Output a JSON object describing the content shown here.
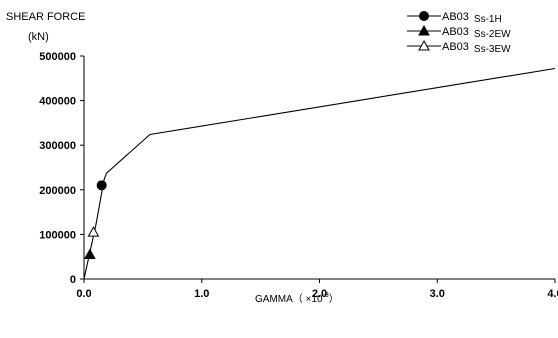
{
  "chart_data": {
    "type": "line",
    "ylabel": "SHEAR FORCE",
    "yunit": "(kN)",
    "xlabel_main": "GAMMA（ ×10",
    "xlabel_exp": "-3",
    "xlabel_close": "）",
    "xlim": [
      0,
      4.0
    ],
    "ylim": [
      0,
      500000
    ],
    "xticks": [
      {
        "value": 0.0,
        "label": "0.0"
      },
      {
        "value": 1.0,
        "label": "1.0"
      },
      {
        "value": 2.0,
        "label": "2.0"
      },
      {
        "value": 3.0,
        "label": "3.0"
      },
      {
        "value": 4.0,
        "label": "4.0"
      }
    ],
    "yticks": [
      {
        "value": 0,
        "label": "0"
      },
      {
        "value": 100000,
        "label": "100000"
      },
      {
        "value": 200000,
        "label": "200000"
      },
      {
        "value": 300000,
        "label": "300000"
      },
      {
        "value": 400000,
        "label": "400000"
      },
      {
        "value": 500000,
        "label": "500000"
      }
    ],
    "skeleton_curve": [
      {
        "x": 0.0,
        "y": 0
      },
      {
        "x": 0.1,
        "y": 120000
      },
      {
        "x": 0.17,
        "y": 222000
      },
      {
        "x": 0.19,
        "y": 237000
      },
      {
        "x": 0.56,
        "y": 324000
      },
      {
        "x": 4.0,
        "y": 472000
      }
    ],
    "series": [
      {
        "name_main": "AB03",
        "name_sub": "Ss-1H",
        "marker": "circle",
        "points": [
          {
            "x": 0.15,
            "y": 210000
          }
        ]
      },
      {
        "name_main": "AB03",
        "name_sub": "Ss-2EW",
        "marker": "triangle",
        "points": [
          {
            "x": 0.05,
            "y": 55000
          }
        ]
      },
      {
        "name_main": "AB03",
        "name_sub": "Ss-3EW",
        "marker": "triangle-open",
        "points": [
          {
            "x": 0.08,
            "y": 105000
          }
        ]
      }
    ],
    "legend_position": "top-right",
    "grid": false
  }
}
